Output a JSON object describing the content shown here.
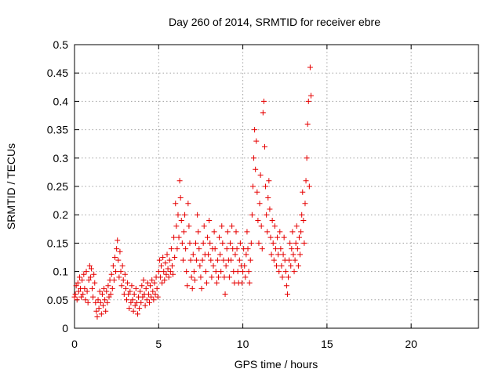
{
  "chart_data": {
    "type": "scatter",
    "title": "Day 260 of 2014, SRMTID for receiver ebre",
    "xlabel": "GPS time / hours",
    "ylabel": "SRMTID / TECUs",
    "xlim": [
      0,
      24
    ],
    "ylim": [
      0,
      0.5
    ],
    "xticks": [
      0,
      5,
      10,
      15,
      20
    ],
    "xtick_labels": [
      "0",
      "5",
      "10",
      "15",
      "20"
    ],
    "yticks": [
      0,
      0.05,
      0.1,
      0.15,
      0.2,
      0.25,
      0.3,
      0.35,
      0.4,
      0.45,
      0.5
    ],
    "ytick_labels": [
      "0",
      "0.05",
      "0.1",
      "0.15",
      "0.2",
      "0.25",
      "0.3",
      "0.35",
      "0.4",
      "0.45",
      "0.5"
    ],
    "grid": true,
    "marker": "+",
    "marker_color": "#e60000",
    "series": [
      {
        "name": "SRMTID",
        "points": [
          [
            0.0,
            0.055
          ],
          [
            0.05,
            0.06
          ],
          [
            0.1,
            0.075
          ],
          [
            0.15,
            0.05
          ],
          [
            0.2,
            0.08
          ],
          [
            0.25,
            0.065
          ],
          [
            0.3,
            0.09
          ],
          [
            0.35,
            0.07
          ],
          [
            0.4,
            0.055
          ],
          [
            0.45,
            0.085
          ],
          [
            0.5,
            0.06
          ],
          [
            0.55,
            0.095
          ],
          [
            0.6,
            0.07
          ],
          [
            0.65,
            0.05
          ],
          [
            0.7,
            0.1
          ],
          [
            0.75,
            0.065
          ],
          [
            0.8,
            0.045
          ],
          [
            0.85,
            0.085
          ],
          [
            0.9,
            0.11
          ],
          [
            0.95,
            0.09
          ],
          [
            1.0,
            0.105
          ],
          [
            1.05,
            0.07
          ],
          [
            1.1,
            0.055
          ],
          [
            1.15,
            0.095
          ],
          [
            1.2,
            0.08
          ],
          [
            1.25,
            0.045
          ],
          [
            1.3,
            0.03
          ],
          [
            1.35,
            0.02
          ],
          [
            1.4,
            0.05
          ],
          [
            1.45,
            0.035
          ],
          [
            1.5,
            0.065
          ],
          [
            1.55,
            0.045
          ],
          [
            1.6,
            0.025
          ],
          [
            1.65,
            0.06
          ],
          [
            1.7,
            0.04
          ],
          [
            1.75,
            0.07
          ],
          [
            1.8,
            0.05
          ],
          [
            1.85,
            0.03
          ],
          [
            1.9,
            0.065
          ],
          [
            1.95,
            0.045
          ],
          [
            2.0,
            0.075
          ],
          [
            2.05,
            0.055
          ],
          [
            2.1,
            0.085
          ],
          [
            2.15,
            0.06
          ],
          [
            2.2,
            0.095
          ],
          [
            2.25,
            0.07
          ],
          [
            2.3,
            0.11
          ],
          [
            2.35,
            0.085
          ],
          [
            2.4,
            0.125
          ],
          [
            2.45,
            0.1
          ],
          [
            2.5,
            0.14
          ],
          [
            2.55,
            0.155
          ],
          [
            2.6,
            0.12
          ],
          [
            2.65,
            0.09
          ],
          [
            2.7,
            0.135
          ],
          [
            2.75,
            0.1
          ],
          [
            2.8,
            0.075
          ],
          [
            2.85,
            0.11
          ],
          [
            2.9,
            0.085
          ],
          [
            2.95,
            0.06
          ],
          [
            3.0,
            0.095
          ],
          [
            3.05,
            0.07
          ],
          [
            3.1,
            0.05
          ],
          [
            3.15,
            0.08
          ],
          [
            3.2,
            0.06
          ],
          [
            3.25,
            0.035
          ],
          [
            3.3,
            0.065
          ],
          [
            3.35,
            0.045
          ],
          [
            3.4,
            0.075
          ],
          [
            3.45,
            0.05
          ],
          [
            3.5,
            0.03
          ],
          [
            3.55,
            0.06
          ],
          [
            3.6,
            0.04
          ],
          [
            3.65,
            0.07
          ],
          [
            3.7,
            0.045
          ],
          [
            3.75,
            0.025
          ],
          [
            3.8,
            0.055
          ],
          [
            3.85,
            0.035
          ],
          [
            3.9,
            0.065
          ],
          [
            3.95,
            0.045
          ],
          [
            4.0,
            0.075
          ],
          [
            4.05,
            0.055
          ],
          [
            4.1,
            0.085
          ],
          [
            4.15,
            0.06
          ],
          [
            4.2,
            0.04
          ],
          [
            4.25,
            0.07
          ],
          [
            4.3,
            0.05
          ],
          [
            4.35,
            0.08
          ],
          [
            4.4,
            0.06
          ],
          [
            4.45,
            0.045
          ],
          [
            4.5,
            0.075
          ],
          [
            4.55,
            0.055
          ],
          [
            4.6,
            0.085
          ],
          [
            4.65,
            0.065
          ],
          [
            4.7,
            0.05
          ],
          [
            4.75,
            0.08
          ],
          [
            4.8,
            0.06
          ],
          [
            4.85,
            0.09
          ],
          [
            4.9,
            0.07
          ],
          [
            4.95,
            0.055
          ],
          [
            5.0,
            0.1
          ],
          [
            5.05,
            0.12
          ],
          [
            5.1,
            0.09
          ],
          [
            5.15,
            0.11
          ],
          [
            5.2,
            0.08
          ],
          [
            5.25,
            0.125
          ],
          [
            5.3,
            0.1
          ],
          [
            5.35,
            0.085
          ],
          [
            5.4,
            0.115
          ],
          [
            5.45,
            0.095
          ],
          [
            5.5,
            0.13
          ],
          [
            5.55,
            0.105
          ],
          [
            5.6,
            0.09
          ],
          [
            5.65,
            0.12
          ],
          [
            5.7,
            0.1
          ],
          [
            5.75,
            0.14
          ],
          [
            5.8,
            0.11
          ],
          [
            5.85,
            0.095
          ],
          [
            5.9,
            0.16
          ],
          [
            5.95,
            0.125
          ],
          [
            6.0,
            0.22
          ],
          [
            6.05,
            0.18
          ],
          [
            6.1,
            0.14
          ],
          [
            6.15,
            0.2
          ],
          [
            6.2,
            0.16
          ],
          [
            6.25,
            0.26
          ],
          [
            6.3,
            0.23
          ],
          [
            6.35,
            0.19
          ],
          [
            6.4,
            0.15
          ],
          [
            6.45,
            0.12
          ],
          [
            6.5,
            0.17
          ],
          [
            6.55,
            0.2
          ],
          [
            6.6,
            0.14
          ],
          [
            6.65,
            0.1
          ],
          [
            6.7,
            0.075
          ],
          [
            6.75,
            0.22
          ],
          [
            6.8,
            0.18
          ],
          [
            6.85,
            0.15
          ],
          [
            6.9,
            0.12
          ],
          [
            6.95,
            0.09
          ],
          [
            7.0,
            0.07
          ],
          [
            7.05,
            0.13
          ],
          [
            7.1,
            0.1
          ],
          [
            7.15,
            0.085
          ],
          [
            7.2,
            0.15
          ],
          [
            7.25,
            0.12
          ],
          [
            7.3,
            0.2
          ],
          [
            7.35,
            0.17
          ],
          [
            7.4,
            0.14
          ],
          [
            7.45,
            0.11
          ],
          [
            7.5,
            0.09
          ],
          [
            7.55,
            0.07
          ],
          [
            7.6,
            0.12
          ],
          [
            7.65,
            0.15
          ],
          [
            7.7,
            0.18
          ],
          [
            7.75,
            0.13
          ],
          [
            7.8,
            0.1
          ],
          [
            7.85,
            0.08
          ],
          [
            7.9,
            0.16
          ],
          [
            7.95,
            0.13
          ],
          [
            8.0,
            0.19
          ],
          [
            8.05,
            0.15
          ],
          [
            8.1,
            0.12
          ],
          [
            8.15,
            0.09
          ],
          [
            8.2,
            0.14
          ],
          [
            8.25,
            0.11
          ],
          [
            8.3,
            0.17
          ],
          [
            8.35,
            0.14
          ],
          [
            8.4,
            0.1
          ],
          [
            8.45,
            0.08
          ],
          [
            8.5,
            0.12
          ],
          [
            8.55,
            0.09
          ],
          [
            8.6,
            0.16
          ],
          [
            8.65,
            0.13
          ],
          [
            8.7,
            0.1
          ],
          [
            8.75,
            0.18
          ],
          [
            8.8,
            0.15
          ],
          [
            8.85,
            0.12
          ],
          [
            8.9,
            0.09
          ],
          [
            8.95,
            0.06
          ],
          [
            9.0,
            0.11
          ],
          [
            9.05,
            0.14
          ],
          [
            9.1,
            0.17
          ],
          [
            9.15,
            0.12
          ],
          [
            9.2,
            0.09
          ],
          [
            9.25,
            0.15
          ],
          [
            9.3,
            0.12
          ],
          [
            9.35,
            0.18
          ],
          [
            9.4,
            0.14
          ],
          [
            9.45,
            0.1
          ],
          [
            9.5,
            0.08
          ],
          [
            9.55,
            0.13
          ],
          [
            9.6,
            0.17
          ],
          [
            9.65,
            0.14
          ],
          [
            9.7,
            0.1
          ],
          [
            9.75,
            0.08
          ],
          [
            9.8,
            0.12
          ],
          [
            9.85,
            0.15
          ],
          [
            9.9,
            0.11
          ],
          [
            9.95,
            0.08
          ],
          [
            10.0,
            0.1
          ],
          [
            10.05,
            0.14
          ],
          [
            10.1,
            0.11
          ],
          [
            10.15,
            0.09
          ],
          [
            10.2,
            0.13
          ],
          [
            10.25,
            0.17
          ],
          [
            10.3,
            0.14
          ],
          [
            10.35,
            0.1
          ],
          [
            10.4,
            0.08
          ],
          [
            10.45,
            0.12
          ],
          [
            10.5,
            0.15
          ],
          [
            10.55,
            0.2
          ],
          [
            10.6,
            0.25
          ],
          [
            10.65,
            0.3
          ],
          [
            10.7,
            0.35
          ],
          [
            10.75,
            0.28
          ],
          [
            10.8,
            0.33
          ],
          [
            10.85,
            0.24
          ],
          [
            10.9,
            0.19
          ],
          [
            10.95,
            0.15
          ],
          [
            11.0,
            0.22
          ],
          [
            11.05,
            0.27
          ],
          [
            11.1,
            0.18
          ],
          [
            11.15,
            0.14
          ],
          [
            11.2,
            0.38
          ],
          [
            11.25,
            0.4
          ],
          [
            11.3,
            0.32
          ],
          [
            11.35,
            0.25
          ],
          [
            11.4,
            0.2
          ],
          [
            11.45,
            0.17
          ],
          [
            11.5,
            0.23
          ],
          [
            11.55,
            0.26
          ],
          [
            11.6,
            0.21
          ],
          [
            11.65,
            0.16
          ],
          [
            11.7,
            0.13
          ],
          [
            11.75,
            0.19
          ],
          [
            11.8,
            0.15
          ],
          [
            11.85,
            0.12
          ],
          [
            11.9,
            0.18
          ],
          [
            11.95,
            0.14
          ],
          [
            12.0,
            0.11
          ],
          [
            12.05,
            0.16
          ],
          [
            12.1,
            0.13
          ],
          [
            12.15,
            0.1
          ],
          [
            12.2,
            0.17
          ],
          [
            12.25,
            0.14
          ],
          [
            12.3,
            0.11
          ],
          [
            12.35,
            0.09
          ],
          [
            12.4,
            0.13
          ],
          [
            12.45,
            0.16
          ],
          [
            12.5,
            0.12
          ],
          [
            12.55,
            0.1
          ],
          [
            12.6,
            0.075
          ],
          [
            12.65,
            0.06
          ],
          [
            12.7,
            0.09
          ],
          [
            12.75,
            0.12
          ],
          [
            12.8,
            0.15
          ],
          [
            12.85,
            0.11
          ],
          [
            12.9,
            0.14
          ],
          [
            12.95,
            0.17
          ],
          [
            13.0,
            0.13
          ],
          [
            13.05,
            0.1
          ],
          [
            13.1,
            0.12
          ],
          [
            13.15,
            0.15
          ],
          [
            13.2,
            0.18
          ],
          [
            13.25,
            0.14
          ],
          [
            13.3,
            0.11
          ],
          [
            13.35,
            0.16
          ],
          [
            13.4,
            0.13
          ],
          [
            13.45,
            0.17
          ],
          [
            13.5,
            0.2
          ],
          [
            13.55,
            0.24
          ],
          [
            13.6,
            0.19
          ],
          [
            13.65,
            0.15
          ],
          [
            13.7,
            0.22
          ],
          [
            13.75,
            0.26
          ],
          [
            13.8,
            0.3
          ],
          [
            13.85,
            0.36
          ],
          [
            13.9,
            0.4
          ],
          [
            13.95,
            0.25
          ],
          [
            14.0,
            0.46
          ],
          [
            14.05,
            0.41
          ]
        ]
      }
    ]
  }
}
